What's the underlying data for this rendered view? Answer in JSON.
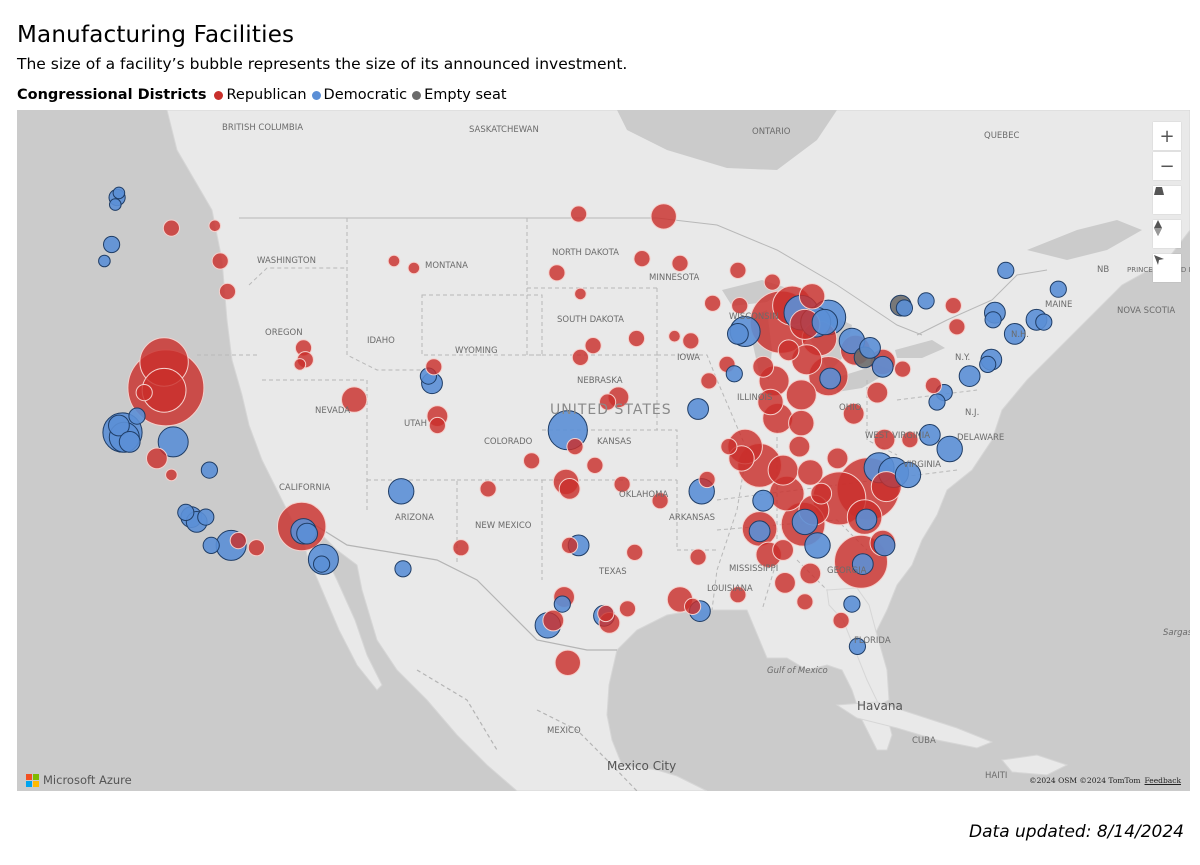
{
  "title": "Manufacturing Facilities",
  "subtitle": "The size of a facility’s bubble represents the size of its announced investment.",
  "legend": {
    "title": "Congressional Districts",
    "items": [
      {
        "label": "Republican",
        "color": "#c9302c"
      },
      {
        "label": "Democratic",
        "color": "#5b8fd6"
      },
      {
        "label": "Empty seat",
        "color": "#6b6b6b"
      }
    ]
  },
  "map": {
    "place_labels": [
      "BRITISH COLUMBIA",
      "SASKATCHEWAN",
      "ONTARIO",
      "QUEBEC",
      "WASHINGTON",
      "MONTANA",
      "NORTH DAKOTA",
      "MINNESOTA",
      "SOUTH DAKOTA",
      "WISCONSIN",
      "OREGON",
      "IDAHO",
      "WYOMING",
      "IOWA",
      "NEBRASKA",
      "NEVADA",
      "UTAH",
      "COLORADO",
      "KANSAS",
      "ILLINOIS",
      "OHIO",
      "WEST VIRGINIA",
      "UNITED STATES",
      "CALIFORNIA",
      "ARIZONA",
      "NEW MEXICO",
      "OKLAHOMA",
      "ARKANSAS",
      "TEXAS",
      "MISSISSIPPI",
      "LOUISIANA",
      "GEORGIA",
      "FLORIDA",
      "Gulf of Mexico",
      "Havana",
      "CUBA",
      "MEXICO",
      "Mexico City",
      "NB",
      "PRINCE EDWARD ISLAND",
      "NOVA SCOTIA",
      "MAINE",
      "N.H.",
      "N.Y.",
      "N.J.",
      "DELAWARE",
      "VIRGINIA",
      "Sargasso",
      "HAITI"
    ],
    "controls": [
      "zoom-in",
      "zoom-out",
      "pitch",
      "compass",
      "select"
    ],
    "logo_text": "Microsoft Azure",
    "attribution": "©2024 OSM ©2024 TomTom",
    "feedback": "Feedback"
  },
  "updated": "Data updated: 8/14/2024",
  "bubbles": [
    {
      "p": "D",
      "lon": -122.3,
      "lat": 47.6,
      "s": 2
    },
    {
      "p": "D",
      "lon": -122.2,
      "lat": 47.8,
      "s": 1
    },
    {
      "p": "D",
      "lon": -122.4,
      "lat": 47.3,
      "s": 1
    },
    {
      "p": "D",
      "lon": -122.6,
      "lat": 45.6,
      "s": 2
    },
    {
      "p": "D",
      "lon": -123.0,
      "lat": 44.9,
      "s": 1
    },
    {
      "p": "R",
      "lon": -119.3,
      "lat": 46.3,
      "s": 2
    },
    {
      "p": "R",
      "lon": -116.9,
      "lat": 46.4,
      "s": 1
    },
    {
      "p": "R",
      "lon": -119.7,
      "lat": 40.6,
      "s": 9
    },
    {
      "p": "R",
      "lon": -119.6,
      "lat": 39.5,
      "s": 15
    },
    {
      "p": "R",
      "lon": -119.7,
      "lat": 39.4,
      "s": 8
    },
    {
      "p": "R",
      "lon": -120.8,
      "lat": 39.3,
      "s": 2
    },
    {
      "p": "D",
      "lon": -122.0,
      "lat": 37.6,
      "s": 7
    },
    {
      "p": "D",
      "lon": -121.9,
      "lat": 37.4,
      "s": 5
    },
    {
      "p": "D",
      "lon": -122.2,
      "lat": 37.9,
      "s": 3
    },
    {
      "p": "D",
      "lon": -121.6,
      "lat": 37.2,
      "s": 3
    },
    {
      "p": "D",
      "lon": -121.2,
      "lat": 38.3,
      "s": 2
    },
    {
      "p": "D",
      "lon": -119.2,
      "lat": 37.2,
      "s": 5
    },
    {
      "p": "R",
      "lon": -120.1,
      "lat": 36.5,
      "s": 3
    },
    {
      "p": "R",
      "lon": -119.3,
      "lat": 35.8,
      "s": 1
    },
    {
      "p": "D",
      "lon": -117.2,
      "lat": 36.0,
      "s": 2
    },
    {
      "p": "D",
      "lon": -118.2,
      "lat": 34.0,
      "s": 3
    },
    {
      "p": "D",
      "lon": -117.9,
      "lat": 33.8,
      "s": 3
    },
    {
      "p": "D",
      "lon": -117.4,
      "lat": 34.0,
      "s": 2
    },
    {
      "p": "D",
      "lon": -118.5,
      "lat": 34.2,
      "s": 2
    },
    {
      "p": "D",
      "lon": -117.1,
      "lat": 32.8,
      "s": 2
    },
    {
      "p": "D",
      "lon": -116.0,
      "lat": 32.8,
      "s": 5
    },
    {
      "p": "R",
      "lon": -115.6,
      "lat": 33.0,
      "s": 2
    },
    {
      "p": "R",
      "lon": -116.2,
      "lat": 43.6,
      "s": 2
    },
    {
      "p": "R",
      "lon": -116.6,
      "lat": 44.9,
      "s": 2
    },
    {
      "p": "R",
      "lon": -112.0,
      "lat": 41.2,
      "s": 2
    },
    {
      "p": "R",
      "lon": -111.9,
      "lat": 40.7,
      "s": 2
    },
    {
      "p": "R",
      "lon": -112.2,
      "lat": 40.5,
      "s": 1
    },
    {
      "p": "R",
      "lon": -109.2,
      "lat": 39.0,
      "s": 4
    },
    {
      "p": "R",
      "lon": -107.0,
      "lat": 44.9,
      "s": 1
    },
    {
      "p": "R",
      "lon": -105.9,
      "lat": 44.6,
      "s": 1
    },
    {
      "p": "D",
      "lon": -104.9,
      "lat": 39.7,
      "s": 3
    },
    {
      "p": "D",
      "lon": -105.1,
      "lat": 40.0,
      "s": 2
    },
    {
      "p": "R",
      "lon": -104.8,
      "lat": 40.4,
      "s": 2
    },
    {
      "p": "R",
      "lon": -104.6,
      "lat": 38.3,
      "s": 3
    },
    {
      "p": "R",
      "lon": -104.6,
      "lat": 37.9,
      "s": 2
    },
    {
      "p": "R",
      "lon": -112.1,
      "lat": 33.6,
      "s": 9
    },
    {
      "p": "D",
      "lon": -112.0,
      "lat": 33.4,
      "s": 4
    },
    {
      "p": "D",
      "lon": -111.8,
      "lat": 33.3,
      "s": 3
    },
    {
      "p": "D",
      "lon": -110.9,
      "lat": 32.2,
      "s": 5
    },
    {
      "p": "D",
      "lon": -111.0,
      "lat": 32.0,
      "s": 2
    },
    {
      "p": "R",
      "lon": -114.6,
      "lat": 32.7,
      "s": 2
    },
    {
      "p": "D",
      "lon": -106.6,
      "lat": 35.1,
      "s": 4
    },
    {
      "p": "D",
      "lon": -106.5,
      "lat": 31.8,
      "s": 2
    },
    {
      "p": "R",
      "lon": -103.3,
      "lat": 32.7,
      "s": 2
    },
    {
      "p": "D",
      "lon": -97.4,
      "lat": 37.7,
      "s": 7
    },
    {
      "p": "R",
      "lon": -97.0,
      "lat": 37.0,
      "s": 2
    },
    {
      "p": "R",
      "lon": -95.2,
      "lat": 38.9,
      "s": 2
    },
    {
      "p": "R",
      "lon": -94.6,
      "lat": 39.1,
      "s": 3
    },
    {
      "p": "R",
      "lon": -96.7,
      "lat": 40.8,
      "s": 2
    },
    {
      "p": "R",
      "lon": -96.0,
      "lat": 41.3,
      "s": 2
    },
    {
      "p": "R",
      "lon": -97.5,
      "lat": 35.5,
      "s": 4
    },
    {
      "p": "R",
      "lon": -97.3,
      "lat": 35.2,
      "s": 3
    },
    {
      "p": "R",
      "lon": -95.9,
      "lat": 36.2,
      "s": 2
    },
    {
      "p": "R",
      "lon": -99.4,
      "lat": 36.4,
      "s": 2
    },
    {
      "p": "R",
      "lon": -101.8,
      "lat": 35.2,
      "s": 2
    },
    {
      "p": "D",
      "lon": -97.7,
      "lat": 30.3,
      "s": 2
    },
    {
      "p": "R",
      "lon": -97.6,
      "lat": 30.6,
      "s": 3
    },
    {
      "p": "D",
      "lon": -96.8,
      "lat": 32.8,
      "s": 3
    },
    {
      "p": "R",
      "lon": -97.3,
      "lat": 32.8,
      "s": 2
    },
    {
      "p": "D",
      "lon": -98.5,
      "lat": 29.4,
      "s": 4
    },
    {
      "p": "R",
      "lon": -98.2,
      "lat": 29.6,
      "s": 3
    },
    {
      "p": "D",
      "lon": -95.4,
      "lat": 29.8,
      "s": 3
    },
    {
      "p": "R",
      "lon": -95.1,
      "lat": 29.5,
      "s": 3
    },
    {
      "p": "R",
      "lon": -95.3,
      "lat": 29.9,
      "s": 2
    },
    {
      "p": "R",
      "lon": -97.4,
      "lat": 27.8,
      "s": 4
    },
    {
      "p": "R",
      "lon": -94.1,
      "lat": 30.1,
      "s": 2
    },
    {
      "p": "R",
      "lon": -93.7,
      "lat": 32.5,
      "s": 2
    },
    {
      "p": "R",
      "lon": -91.2,
      "lat": 30.5,
      "s": 4
    },
    {
      "p": "D",
      "lon": -90.1,
      "lat": 30.0,
      "s": 3
    },
    {
      "p": "R",
      "lon": -90.5,
      "lat": 30.2,
      "s": 2
    },
    {
      "p": "R",
      "lon": -88.0,
      "lat": 30.7,
      "s": 2
    },
    {
      "p": "R",
      "lon": -90.2,
      "lat": 32.3,
      "s": 2
    },
    {
      "p": "D",
      "lon": -90.0,
      "lat": 35.1,
      "s": 4
    },
    {
      "p": "R",
      "lon": -89.7,
      "lat": 35.6,
      "s": 2
    },
    {
      "p": "R",
      "lon": -92.3,
      "lat": 34.7,
      "s": 2
    },
    {
      "p": "R",
      "lon": -94.4,
      "lat": 35.4,
      "s": 2
    },
    {
      "p": "R",
      "lon": -88.5,
      "lat": 37.0,
      "s": 2
    },
    {
      "p": "R",
      "lon": -87.6,
      "lat": 37.0,
      "s": 6
    },
    {
      "p": "R",
      "lon": -87.8,
      "lat": 36.5,
      "s": 4
    },
    {
      "p": "R",
      "lon": -86.8,
      "lat": 36.2,
      "s": 8
    },
    {
      "p": "R",
      "lon": -85.5,
      "lat": 36.0,
      "s": 5
    },
    {
      "p": "R",
      "lon": -84.6,
      "lat": 37.0,
      "s": 3
    },
    {
      "p": "R",
      "lon": -85.8,
      "lat": 38.2,
      "s": 5
    },
    {
      "p": "R",
      "lon": -84.5,
      "lat": 38.0,
      "s": 4
    },
    {
      "p": "R",
      "lon": -86.2,
      "lat": 38.9,
      "s": 4
    },
    {
      "p": "R",
      "lon": -86.0,
      "lat": 39.8,
      "s": 5
    },
    {
      "p": "R",
      "lon": -86.6,
      "lat": 40.4,
      "s": 3
    },
    {
      "p": "R",
      "lon": -85.2,
      "lat": 41.1,
      "s": 3
    },
    {
      "p": "D",
      "lon": -87.6,
      "lat": 41.9,
      "s": 5
    },
    {
      "p": "D",
      "lon": -88.0,
      "lat": 41.8,
      "s": 3
    },
    {
      "p": "R",
      "lon": -88.6,
      "lat": 40.5,
      "s": 2
    },
    {
      "p": "D",
      "lon": -88.2,
      "lat": 40.1,
      "s": 2
    },
    {
      "p": "R",
      "lon": -89.6,
      "lat": 39.8,
      "s": 2
    },
    {
      "p": "D",
      "lon": -90.2,
      "lat": 38.6,
      "s": 3
    },
    {
      "p": "R",
      "lon": -90.6,
      "lat": 41.5,
      "s": 2
    },
    {
      "p": "R",
      "lon": -91.5,
      "lat": 41.7,
      "s": 1
    },
    {
      "p": "R",
      "lon": -93.6,
      "lat": 41.6,
      "s": 2
    },
    {
      "p": "R",
      "lon": -87.9,
      "lat": 43.0,
      "s": 2
    },
    {
      "p": "R",
      "lon": -88.0,
      "lat": 44.5,
      "s": 2
    },
    {
      "p": "R",
      "lon": -89.4,
      "lat": 43.1,
      "s": 2
    },
    {
      "p": "R",
      "lon": -91.2,
      "lat": 44.8,
      "s": 2
    },
    {
      "p": "R",
      "lon": -93.3,
      "lat": 45.0,
      "s": 2
    },
    {
      "p": "R",
      "lon": -92.1,
      "lat": 46.8,
      "s": 4
    },
    {
      "p": "R",
      "lon": -96.8,
      "lat": 46.9,
      "s": 2
    },
    {
      "p": "R",
      "lon": -98.0,
      "lat": 44.4,
      "s": 2
    },
    {
      "p": "R",
      "lon": -96.7,
      "lat": 43.5,
      "s": 1
    },
    {
      "p": "R",
      "lon": -85.6,
      "lat": 42.3,
      "s": 12
    },
    {
      "p": "R",
      "lon": -85.0,
      "lat": 43.0,
      "s": 7
    },
    {
      "p": "D",
      "lon": -84.5,
      "lat": 42.7,
      "s": 6
    },
    {
      "p": "D",
      "lon": -83.7,
      "lat": 42.3,
      "s": 5
    },
    {
      "p": "D",
      "lon": -83.0,
      "lat": 42.5,
      "s": 6
    },
    {
      "p": "D",
      "lon": -83.2,
      "lat": 42.3,
      "s": 4
    },
    {
      "p": "R",
      "lon": -83.9,
      "lat": 43.4,
      "s": 4
    },
    {
      "p": "R",
      "lon": -86.1,
      "lat": 44.0,
      "s": 2
    },
    {
      "p": "R",
      "lon": -84.3,
      "lat": 42.2,
      "s": 5
    },
    {
      "p": "R",
      "lon": -83.5,
      "lat": 41.6,
      "s": 6
    },
    {
      "p": "R",
      "lon": -84.2,
      "lat": 40.7,
      "s": 5
    },
    {
      "p": "R",
      "lon": -83.0,
      "lat": 40.0,
      "s": 7
    },
    {
      "p": "D",
      "lon": -82.9,
      "lat": 39.9,
      "s": 3
    },
    {
      "p": "R",
      "lon": -84.5,
      "lat": 39.2,
      "s": 5
    },
    {
      "p": "R",
      "lon": -81.5,
      "lat": 41.1,
      "s": 5
    },
    {
      "p": "D",
      "lon": -81.7,
      "lat": 41.5,
      "s": 4
    },
    {
      "p": "E",
      "lon": -81.0,
      "lat": 40.8,
      "s": 3
    },
    {
      "p": "D",
      "lon": -80.7,
      "lat": 41.2,
      "s": 3
    },
    {
      "p": "R",
      "lon": -80.0,
      "lat": 40.6,
      "s": 4
    },
    {
      "p": "D",
      "lon": -80.0,
      "lat": 40.4,
      "s": 3
    },
    {
      "p": "R",
      "lon": -80.3,
      "lat": 39.3,
      "s": 3
    },
    {
      "p": "R",
      "lon": -81.6,
      "lat": 38.4,
      "s": 3
    },
    {
      "p": "R",
      "lon": -78.9,
      "lat": 40.3,
      "s": 2
    },
    {
      "p": "E",
      "lon": -79.0,
      "lat": 43.0,
      "s": 3
    },
    {
      "p": "D",
      "lon": -78.8,
      "lat": 42.9,
      "s": 2
    },
    {
      "p": "D",
      "lon": -77.6,
      "lat": 43.2,
      "s": 2
    },
    {
      "p": "R",
      "lon": -76.1,
      "lat": 43.0,
      "s": 2
    },
    {
      "p": "D",
      "lon": -73.8,
      "lat": 42.7,
      "s": 3
    },
    {
      "p": "D",
      "lon": -73.9,
      "lat": 42.4,
      "s": 2
    },
    {
      "p": "R",
      "lon": -75.9,
      "lat": 42.1,
      "s": 2
    },
    {
      "p": "D",
      "lon": -74.0,
      "lat": 40.7,
      "s": 3
    },
    {
      "p": "D",
      "lon": -74.2,
      "lat": 40.5,
      "s": 2
    },
    {
      "p": "D",
      "lon": -75.2,
      "lat": 40.0,
      "s": 3
    },
    {
      "p": "D",
      "lon": -76.6,
      "lat": 39.3,
      "s": 2
    },
    {
      "p": "D",
      "lon": -77.0,
      "lat": 38.9,
      "s": 2
    },
    {
      "p": "R",
      "lon": -77.2,
      "lat": 39.6,
      "s": 2
    },
    {
      "p": "D",
      "lon": -72.7,
      "lat": 41.8,
      "s": 3
    },
    {
      "p": "D",
      "lon": -71.5,
      "lat": 42.4,
      "s": 3
    },
    {
      "p": "D",
      "lon": -71.1,
      "lat": 42.3,
      "s": 2
    },
    {
      "p": "D",
      "lon": -73.2,
      "lat": 44.5,
      "s": 2
    },
    {
      "p": "D",
      "lon": -70.3,
      "lat": 43.7,
      "s": 2
    },
    {
      "p": "R",
      "lon": -80.8,
      "lat": 35.2,
      "s": 12
    },
    {
      "p": "D",
      "lon": -80.2,
      "lat": 36.1,
      "s": 5
    },
    {
      "p": "D",
      "lon": -79.4,
      "lat": 35.9,
      "s": 5
    },
    {
      "p": "D",
      "lon": -78.6,
      "lat": 35.8,
      "s": 4
    },
    {
      "p": "R",
      "lon": -79.8,
      "lat": 35.3,
      "s": 5
    },
    {
      "p": "D",
      "lon": -77.4,
      "lat": 37.5,
      "s": 3
    },
    {
      "p": "D",
      "lon": -76.3,
      "lat": 36.9,
      "s": 4
    },
    {
      "p": "R",
      "lon": -79.9,
      "lat": 37.3,
      "s": 3
    },
    {
      "p": "R",
      "lon": -78.5,
      "lat": 37.3,
      "s": 2
    },
    {
      "p": "R",
      "lon": -82.4,
      "lat": 34.8,
      "s": 10
    },
    {
      "p": "R",
      "lon": -81.0,
      "lat": 34.0,
      "s": 6
    },
    {
      "p": "D",
      "lon": -80.9,
      "lat": 33.9,
      "s": 3
    },
    {
      "p": "R",
      "lon": -80.0,
      "lat": 32.9,
      "s": 4
    },
    {
      "p": "D",
      "lon": -79.9,
      "lat": 32.8,
      "s": 3
    },
    {
      "p": "R",
      "lon": -83.4,
      "lat": 35.0,
      "s": 3
    },
    {
      "p": "R",
      "lon": -84.4,
      "lat": 33.7,
      "s": 8
    },
    {
      "p": "D",
      "lon": -84.3,
      "lat": 33.8,
      "s": 4
    },
    {
      "p": "R",
      "lon": -83.8,
      "lat": 34.3,
      "s": 5
    },
    {
      "p": "R",
      "lon": -81.2,
      "lat": 32.1,
      "s": 10
    },
    {
      "p": "D",
      "lon": -81.1,
      "lat": 32.0,
      "s": 3
    },
    {
      "p": "R",
      "lon": -84.0,
      "lat": 31.6,
      "s": 3
    },
    {
      "p": "D",
      "lon": -83.6,
      "lat": 32.8,
      "s": 4
    },
    {
      "p": "R",
      "lon": -86.8,
      "lat": 33.5,
      "s": 6
    },
    {
      "p": "D",
      "lon": -86.8,
      "lat": 33.4,
      "s": 3
    },
    {
      "p": "R",
      "lon": -86.3,
      "lat": 32.4,
      "s": 4
    },
    {
      "p": "R",
      "lon": -85.5,
      "lat": 32.6,
      "s": 3
    },
    {
      "p": "R",
      "lon": -85.4,
      "lat": 31.2,
      "s": 3
    },
    {
      "p": "D",
      "lon": -86.6,
      "lat": 34.7,
      "s": 3
    },
    {
      "p": "R",
      "lon": -85.3,
      "lat": 35.0,
      "s": 6
    },
    {
      "p": "R",
      "lon": -84.0,
      "lat": 35.9,
      "s": 4
    },
    {
      "p": "R",
      "lon": -82.5,
      "lat": 36.5,
      "s": 3
    },
    {
      "p": "D",
      "lon": -81.7,
      "lat": 30.3,
      "s": 2
    },
    {
      "p": "R",
      "lon": -82.3,
      "lat": 29.6,
      "s": 2
    },
    {
      "p": "D",
      "lon": -81.4,
      "lat": 28.5,
      "s": 2
    },
    {
      "p": "R",
      "lon": -84.3,
      "lat": 30.4,
      "s": 2
    }
  ]
}
